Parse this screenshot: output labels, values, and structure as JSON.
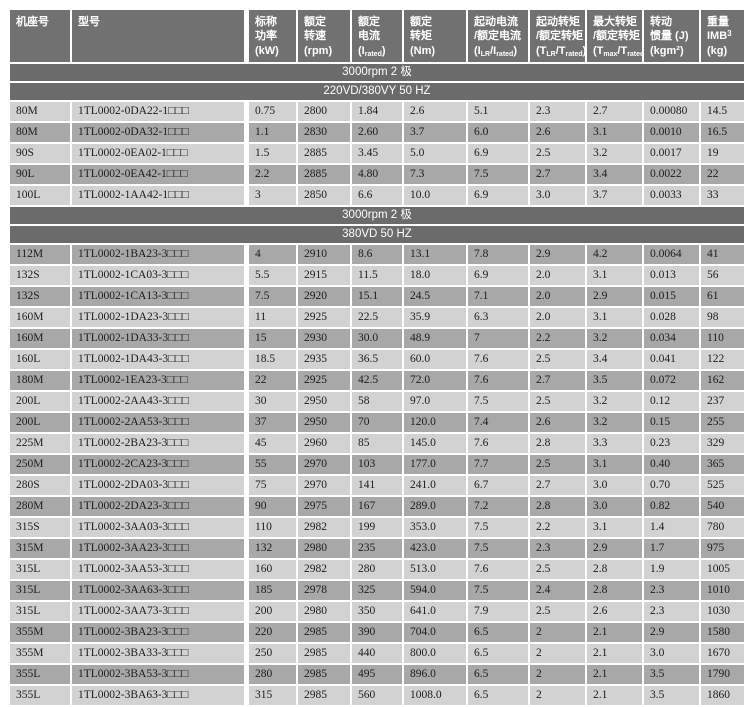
{
  "colors": {
    "header_bg": "#717171",
    "band_bg": "#6b6b6b",
    "row_light": "#d2d2d2",
    "row_dark": "#a8a8a8",
    "header_text": "#ffffff",
    "cell_text": "#1b1b1b",
    "page_bg": "#ffffff"
  },
  "table": {
    "columns": [
      {
        "key": "frame",
        "lines": [
          [
            {
              "t": "机座号"
            }
          ]
        ]
      },
      {
        "key": "model",
        "lines": [
          [
            {
              "t": "型号"
            }
          ]
        ]
      },
      {
        "key": "power_kw",
        "lines": [
          [
            {
              "t": "标称"
            }
          ],
          [
            {
              "t": "功率"
            }
          ],
          [
            {
              "t": "(kW)"
            }
          ]
        ]
      },
      {
        "key": "speed_rpm",
        "lines": [
          [
            {
              "t": "额定"
            }
          ],
          [
            {
              "t": "转速"
            }
          ],
          [
            {
              "t": "(rpm)"
            }
          ]
        ]
      },
      {
        "key": "current",
        "lines": [
          [
            {
              "t": "额定"
            }
          ],
          [
            {
              "t": "电流"
            }
          ],
          [
            {
              "t": "(I"
            },
            {
              "sub": "rated"
            },
            {
              "t": ")"
            }
          ]
        ]
      },
      {
        "key": "torque_nm",
        "lines": [
          [
            {
              "t": "额定"
            }
          ],
          [
            {
              "t": "转矩"
            }
          ],
          [
            {
              "t": "(Nm)"
            }
          ]
        ]
      },
      {
        "key": "i_lr_ratio",
        "lines": [
          [
            {
              "t": "起动电流"
            }
          ],
          [
            {
              "t": "/额定电流"
            }
          ],
          [
            {
              "t": "(I"
            },
            {
              "sub": "LR"
            },
            {
              "t": "/I"
            },
            {
              "sub": "rated"
            },
            {
              "t": ")"
            }
          ]
        ]
      },
      {
        "key": "t_lr_ratio",
        "lines": [
          [
            {
              "t": "起动转矩"
            }
          ],
          [
            {
              "t": "/额定转矩"
            }
          ],
          [
            {
              "t": "(T"
            },
            {
              "sub": "LR"
            },
            {
              "t": "/T"
            },
            {
              "sub": "rated"
            },
            {
              "t": ")"
            }
          ]
        ]
      },
      {
        "key": "t_max_ratio",
        "lines": [
          [
            {
              "t": "最大转矩"
            }
          ],
          [
            {
              "t": "/额定转矩"
            }
          ],
          [
            {
              "t": "(T"
            },
            {
              "sub": "max"
            },
            {
              "t": "/T"
            },
            {
              "sub": "rated"
            },
            {
              "t": ")"
            }
          ]
        ]
      },
      {
        "key": "inertia",
        "lines": [
          [
            {
              "t": "转动"
            }
          ],
          [
            {
              "t": "惯量 (J)"
            }
          ],
          [
            {
              "t": "(kgm²)"
            }
          ]
        ]
      },
      {
        "key": "weight",
        "lines": [
          [
            {
              "t": "重量"
            }
          ],
          [
            {
              "t": "IMB"
            },
            {
              "sup": "3"
            }
          ],
          [
            {
              "t": "(kg)"
            }
          ]
        ]
      }
    ],
    "sections": [
      {
        "bands": [
          "3000rpm 2 极",
          "220VD/380VY  50 HZ"
        ],
        "rows": [
          [
            "80M",
            "1TL0002-0DA22-1□□□",
            "0.75",
            "2800",
            "1.84",
            "2.6",
            "5.1",
            "2.3",
            "2.7",
            "0.00080",
            "14.5"
          ],
          [
            "80M",
            "1TL0002-0DA32-1□□□",
            "1.1",
            "2830",
            "2.60",
            "3.7",
            "6.0",
            "2.6",
            "3.1",
            "0.0010",
            "16.5"
          ],
          [
            "90S",
            "1TL0002-0EA02-1□□□",
            "1.5",
            "2885",
            "3.45",
            "5.0",
            "6.9",
            "2.5",
            "3.2",
            "0.0017",
            "19"
          ],
          [
            "90L",
            "1TL0002-0EA42-1□□□",
            "2.2",
            "2885",
            "4.80",
            "7.3",
            "7.5",
            "2.7",
            "3.4",
            "0.0022",
            "22"
          ],
          [
            "100L",
            "1TL0002-1AA42-1□□□",
            "3",
            "2850",
            "6.6",
            "10.0",
            "6.9",
            "3.0",
            "3.7",
            "0.0033",
            "33"
          ]
        ]
      },
      {
        "bands": [
          "3000rpm 2 极",
          "380VD  50 HZ"
        ],
        "rows": [
          [
            "112M",
            "1TL0002-1BA23-3□□□",
            "4",
            "2910",
            "8.6",
            "13.1",
            "7.8",
            "2.9",
            "4.2",
            "0.0064",
            "41"
          ],
          [
            "132S",
            "1TL0002-1CA03-3□□□",
            "5.5",
            "2915",
            "11.5",
            "18.0",
            "6.9",
            "2.0",
            "3.1",
            "0.013",
            "56"
          ],
          [
            "132S",
            "1TL0002-1CA13-3□□□",
            "7.5",
            "2920",
            "15.1",
            "24.5",
            "7.1",
            "2.0",
            "2.9",
            "0.015",
            "61"
          ],
          [
            "160M",
            "1TL0002-1DA23-3□□□",
            "11",
            "2925",
            "22.5",
            "35.9",
            "6.3",
            "2.0",
            "3.1",
            "0.028",
            "98"
          ],
          [
            "160M",
            "1TL0002-1DA33-3□□□",
            "15",
            "2930",
            "30.0",
            "48.9",
            "7",
            "2.2",
            "3.2",
            "0.034",
            "110"
          ],
          [
            "160L",
            "1TL0002-1DA43-3□□□",
            "18.5",
            "2935",
            "36.5",
            "60.0",
            "7.6",
            "2.5",
            "3.4",
            "0.041",
            "122"
          ],
          [
            "180M",
            "1TL0002-1EA23-3□□□",
            "22",
            "2925",
            "42.5",
            "72.0",
            "7.6",
            "2.7",
            "3.5",
            "0.072",
            "162"
          ],
          [
            "200L",
            "1TL0002-2AA43-3□□□",
            "30",
            "2950",
            "58",
            "97.0",
            "7.5",
            "2.5",
            "3.2",
            "0.12",
            "237"
          ],
          [
            "200L",
            "1TL0002-2AA53-3□□□",
            "37",
            "2950",
            "70",
            "120.0",
            "7.4",
            "2.6",
            "3.2",
            "0.15",
            "255"
          ],
          [
            "225M",
            "1TL0002-2BA23-3□□□",
            "45",
            "2960",
            "85",
            "145.0",
            "7.6",
            "2.8",
            "3.3",
            "0.23",
            "329"
          ],
          [
            "250M",
            "1TL0002-2CA23-3□□□",
            "55",
            "2970",
            "103",
            "177.0",
            "7.7",
            "2.5",
            "3.1",
            "0.40",
            "365"
          ],
          [
            "280S",
            "1TL0002-2DA03-3□□□",
            "75",
            "2970",
            "141",
            "241.0",
            "6.7",
            "2.7",
            "3.0",
            "0.70",
            "525"
          ],
          [
            "280M",
            "1TL0002-2DA23-3□□□",
            "90",
            "2975",
            "167",
            "289.0",
            "7.2",
            "2.8",
            "3.0",
            "0.82",
            "540"
          ],
          [
            "315S",
            "1TL0002-3AA03-3□□□",
            "110",
            "2982",
            "199",
            "353.0",
            "7.5",
            "2.2",
            "3.1",
            "1.4",
            "780"
          ],
          [
            "315M",
            "1TL0002-3AA23-3□□□",
            "132",
            "2980",
            "235",
            "423.0",
            "7.5",
            "2.3",
            "2.9",
            "1.7",
            "975"
          ],
          [
            "315L",
            "1TL0002-3AA53-3□□□",
            "160",
            "2982",
            "280",
            "513.0",
            "7.6",
            "2.5",
            "2.8",
            "1.9",
            "1005"
          ],
          [
            "315L",
            "1TL0002-3AA63-3□□□",
            "185",
            "2978",
            "325",
            "594.0",
            "7.5",
            "2.4",
            "2.8",
            "2.3",
            "1010"
          ],
          [
            "315L",
            "1TL0002-3AA73-3□□□",
            "200",
            "2980",
            "350",
            "641.0",
            "7.9",
            "2.5",
            "2.6",
            "2.3",
            "1030"
          ],
          [
            "355M",
            "1TL0002-3BA23-3□□□",
            "220",
            "2985",
            "390",
            "704.0",
            "6.5",
            "2",
            "2.1",
            "2.9",
            "1580"
          ],
          [
            "355M",
            "1TL0002-3BA33-3□□□",
            "250",
            "2985",
            "440",
            "800.0",
            "6.5",
            "2",
            "2.1",
            "3.0",
            "1670"
          ],
          [
            "355L",
            "1TL0002-3BA53-3□□□",
            "280",
            "2985",
            "495",
            "896.0",
            "6.5",
            "2",
            "2.1",
            "3.5",
            "1790"
          ],
          [
            "355L",
            "1TL0002-3BA63-3□□□",
            "315",
            "2985",
            "560",
            "1008.0",
            "6.5",
            "2",
            "2.1",
            "3.5",
            "1860"
          ]
        ]
      }
    ]
  }
}
